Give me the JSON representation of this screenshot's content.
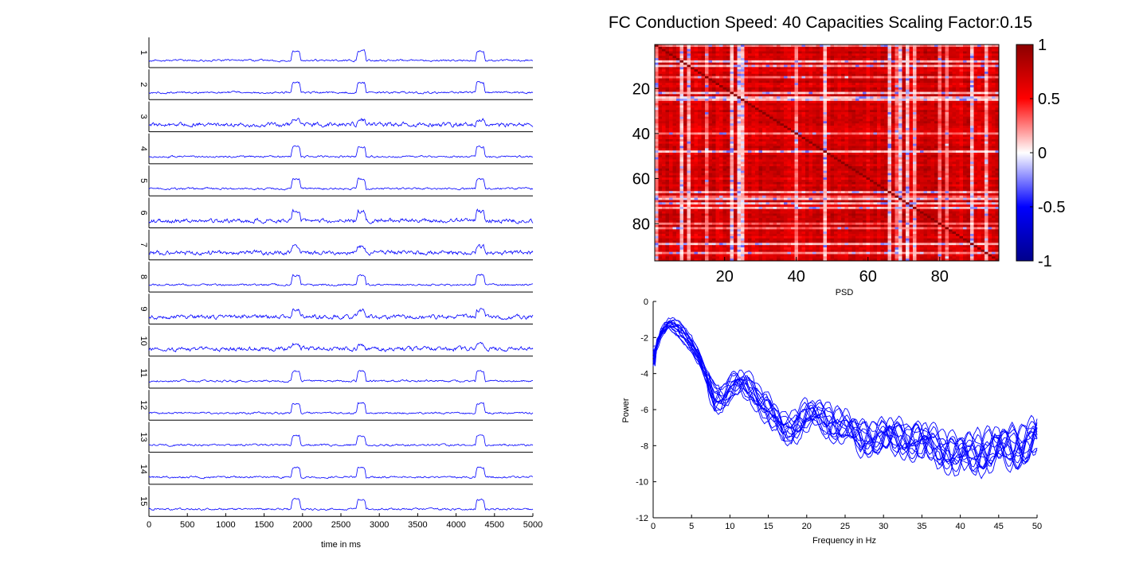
{
  "title": "FC Conduction Speed: 40  Capacities Scaling Factor:0.15",
  "chart_data": [
    {
      "type": "line",
      "panel": "time-series",
      "xlabel": "time in ms",
      "xlim": [
        0,
        5000
      ],
      "xticks": [
        "0",
        "500",
        "1000",
        "1500",
        "2000",
        "2500",
        "3000",
        "3500",
        "4000",
        "4500",
        "5000"
      ],
      "channel_labels": [
        "1",
        "2",
        "3",
        "4",
        "5",
        "6",
        "7",
        "8",
        "9",
        "10",
        "11",
        "12",
        "13",
        "14",
        "15"
      ],
      "burst_intervals_ms": [
        [
          1850,
          1980
        ],
        [
          2700,
          2830
        ],
        [
          4250,
          4380
        ]
      ],
      "color": "#0000ff"
    },
    {
      "type": "heatmap",
      "panel": "functional-connectivity",
      "size": 96,
      "xticks": [
        "20",
        "40",
        "60",
        "80"
      ],
      "yticks": [
        "20",
        "40",
        "60",
        "80"
      ],
      "xlabel": "PSD",
      "colorbar_ticks": [
        "1",
        "0.5",
        "0",
        "-0.5",
        "-1"
      ],
      "clim": [
        -1,
        1
      ],
      "diagonal": 1,
      "colormap": [
        "#00008b",
        "#0000ff",
        "#ffffff",
        "#ff0000",
        "#8b0000"
      ]
    },
    {
      "type": "line",
      "panel": "power-spectrum",
      "xlabel": "Frequency in Hz",
      "ylabel": "Power",
      "xlim": [
        0,
        50
      ],
      "ylim": [
        -12,
        0
      ],
      "xticks": [
        "0",
        "5",
        "10",
        "15",
        "20",
        "25",
        "30",
        "35",
        "40",
        "45",
        "50"
      ],
      "yticks": [
        "0",
        "-2",
        "-4",
        "-6",
        "-8",
        "-10",
        "-12"
      ],
      "series_count": 15,
      "approx_mean_curve": {
        "x": [
          0,
          1,
          2,
          3,
          4,
          5,
          6,
          7,
          8,
          9,
          10,
          11,
          12,
          13,
          14,
          15,
          16,
          17,
          18,
          20,
          22,
          25,
          27,
          30,
          33,
          35,
          38,
          40,
          42,
          45,
          48,
          50
        ],
        "y": [
          -3,
          -1.8,
          -1.3,
          -1.4,
          -1.8,
          -2.4,
          -3.2,
          -4.3,
          -5.4,
          -5.3,
          -4.8,
          -4.6,
          -4.7,
          -5.0,
          -5.5,
          -6.0,
          -6.6,
          -7.2,
          -7.0,
          -6.3,
          -6.5,
          -7.0,
          -7.6,
          -7.5,
          -7.6,
          -7.8,
          -8.2,
          -8.6,
          -8.4,
          -8.2,
          -8.0,
          -7.6
        ]
      },
      "color": "#0000ff"
    }
  ]
}
